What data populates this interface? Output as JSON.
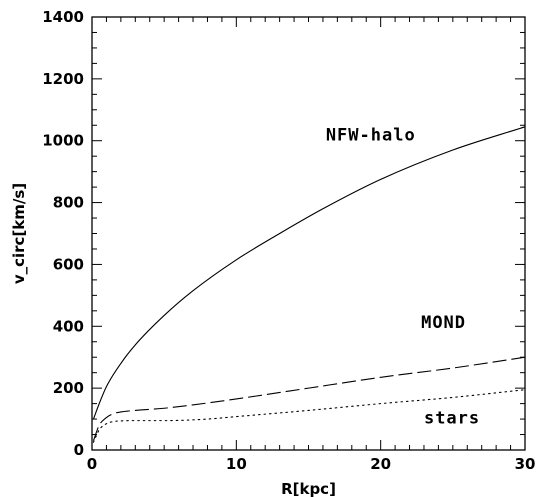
{
  "chart_data": {
    "type": "line",
    "xlabel": "R[kpc]",
    "ylabel": "v_circ[km/s]",
    "xlim": [
      0,
      30
    ],
    "ylim": [
      0,
      1400
    ],
    "x_ticks": [
      0,
      10,
      20,
      30
    ],
    "y_ticks": [
      0,
      200,
      400,
      600,
      800,
      1000,
      1200,
      1400
    ],
    "x_tick_labels": [
      "0",
      "10",
      "20",
      "30"
    ],
    "y_tick_labels": [
      "0",
      "200",
      "400",
      "600",
      "800",
      "1000",
      "1200",
      "1400"
    ],
    "grid": false,
    "series": [
      {
        "name": "NFW-halo",
        "style": "solid",
        "x": [
          0.1,
          0.5,
          1,
          2,
          3,
          5,
          7,
          10,
          13,
          16,
          20,
          25,
          30
        ],
        "y": [
          100,
          150,
          205,
          280,
          340,
          435,
          515,
          615,
          700,
          780,
          875,
          970,
          1045
        ]
      },
      {
        "name": "MOND",
        "style": "dashed",
        "x": [
          0.1,
          0.5,
          1,
          1.5,
          2,
          3,
          5,
          8,
          10,
          15,
          20,
          25,
          30
        ],
        "y": [
          30,
          80,
          105,
          118,
          123,
          128,
          135,
          152,
          165,
          200,
          235,
          265,
          300
        ]
      },
      {
        "name": "stars",
        "style": "dotted",
        "x": [
          0.1,
          0.5,
          1,
          1.5,
          2,
          3,
          5,
          8,
          10,
          15,
          20,
          25,
          30
        ],
        "y": [
          25,
          65,
          85,
          92,
          94,
          95,
          95,
          100,
          108,
          128,
          150,
          170,
          195
        ]
      }
    ],
    "annotations": [
      {
        "text": "NFW-halo",
        "x": 16.2,
        "y": 1000
      },
      {
        "text": "MOND",
        "x": 22.8,
        "y": 395
      },
      {
        "text": "stars",
        "x": 23,
        "y": 85
      }
    ]
  }
}
